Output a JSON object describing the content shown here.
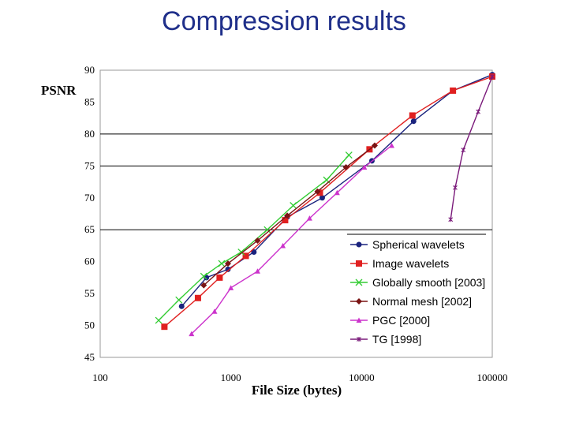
{
  "slide_title": "Compression results",
  "chart_data": {
    "type": "line",
    "xlabel": "File Size (bytes)",
    "ylabel": "PSNR",
    "xscale": "log",
    "xlim": [
      100,
      100000
    ],
    "ylim": [
      45,
      90
    ],
    "x_tick_labels": [
      "100",
      "1000",
      "10000",
      "100000"
    ],
    "y_ticks": [
      45,
      50,
      55,
      60,
      65,
      70,
      75,
      80,
      85,
      90
    ],
    "grid": "horizontal lines at 65, 75, 80",
    "legend_position": "bottom-right",
    "series": [
      {
        "name": "Spherical wavelets",
        "color": "#1a237e",
        "marker": "circle",
        "x": [
          420,
          650,
          950,
          1500,
          2700,
          5000,
          12000,
          25000,
          50000,
          100000
        ],
        "y": [
          53.0,
          57.5,
          58.8,
          61.5,
          67.0,
          70.0,
          75.8,
          82.0,
          86.8,
          89.3
        ]
      },
      {
        "name": "Image wavelets",
        "color": "#e02020",
        "marker": "square",
        "x": [
          310,
          560,
          820,
          1300,
          2600,
          4800,
          11500,
          24500,
          50000,
          100000
        ],
        "y": [
          49.8,
          54.3,
          57.5,
          60.9,
          66.5,
          70.8,
          77.6,
          82.9,
          86.8,
          89.0
        ]
      },
      {
        "name": "Globally smooth [2003]",
        "color": "#33cc33",
        "marker": "x",
        "x": [
          280,
          400,
          620,
          850,
          1200,
          1900,
          3000,
          5400,
          8000
        ],
        "y": [
          50.8,
          54.0,
          57.7,
          59.7,
          61.5,
          65.0,
          68.8,
          72.8,
          76.7
        ]
      },
      {
        "name": "Normal mesh [2002]",
        "color": "#7a1414",
        "marker": "diamond",
        "x": [
          620,
          950,
          1600,
          2700,
          4600,
          7600,
          12600
        ],
        "y": [
          56.3,
          59.7,
          63.3,
          67.2,
          71.0,
          74.8,
          78.2
        ]
      },
      {
        "name": "PGC [2000]",
        "color": "#cc33cc",
        "marker": "triangle",
        "x": [
          500,
          750,
          1000,
          1600,
          2500,
          4000,
          6500,
          10500,
          17000
        ],
        "y": [
          48.7,
          52.2,
          55.9,
          58.5,
          62.5,
          66.8,
          70.8,
          74.8,
          78.2
        ]
      },
      {
        "name": "TG [1998]",
        "color": "#7a1a7a",
        "marker": "star",
        "x": [
          48000,
          52000,
          60000,
          78000,
          100000
        ],
        "y": [
          66.6,
          71.6,
          77.5,
          83.5,
          89.0
        ]
      }
    ]
  }
}
